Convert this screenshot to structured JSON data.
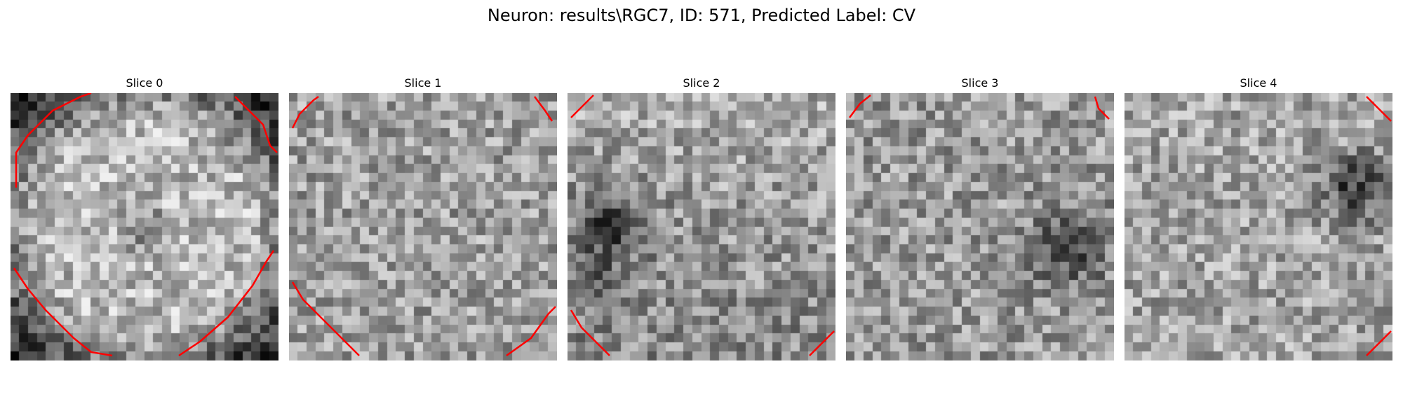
{
  "figure": {
    "title": "Neuron: results\\RGC7, ID: 571, Predicted Label: CV",
    "contour_color": "#ff0000"
  },
  "slices": [
    {
      "title": "Slice 0"
    },
    {
      "title": "Slice 1"
    },
    {
      "title": "Slice 2"
    },
    {
      "title": "Slice 3"
    },
    {
      "title": "Slice 4"
    }
  ]
}
